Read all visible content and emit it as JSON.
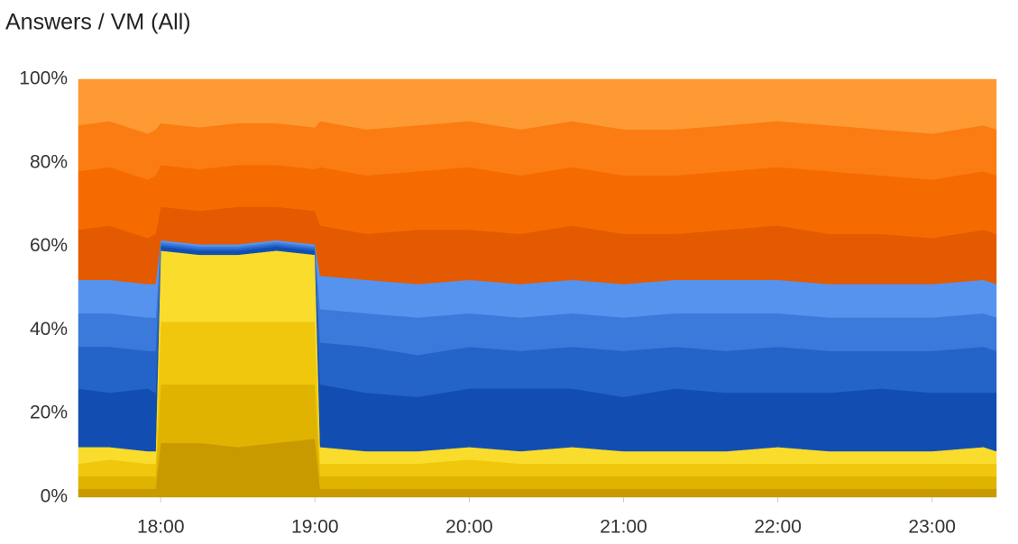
{
  "chart_data": {
    "type": "area",
    "stacked": true,
    "title": "Answers / VM (All)",
    "x": [
      1048,
      1060,
      1075,
      1078,
      1080,
      1095,
      1110,
      1125,
      1140,
      1142,
      1160,
      1180,
      1200,
      1220,
      1240,
      1260,
      1280,
      1300,
      1320,
      1340,
      1360,
      1380,
      1400,
      1405
    ],
    "xlim": [
      1048,
      1405
    ],
    "xticks": [
      {
        "value": 1080,
        "label": "18:00"
      },
      {
        "value": 1140,
        "label": "19:00"
      },
      {
        "value": 1200,
        "label": "20:00"
      },
      {
        "value": 1260,
        "label": "21:00"
      },
      {
        "value": 1320,
        "label": "22:00"
      },
      {
        "value": 1380,
        "label": "23:00"
      }
    ],
    "ylim": [
      0,
      100
    ],
    "yticks": [
      {
        "value": 0,
        "label": "0%"
      },
      {
        "value": 20,
        "label": "20%"
      },
      {
        "value": 40,
        "label": "40%"
      },
      {
        "value": 60,
        "label": "60%"
      },
      {
        "value": 80,
        "label": "80%"
      },
      {
        "value": 100,
        "label": "100%"
      }
    ],
    "series": [
      {
        "color": "#c89a00",
        "values": [
          2,
          2,
          2,
          2,
          13,
          13,
          12,
          13,
          14,
          2,
          2,
          2,
          2,
          2,
          2,
          2,
          2,
          2,
          2,
          2,
          2,
          2,
          2,
          2
        ]
      },
      {
        "color": "#dfb300",
        "values": [
          3,
          3,
          3,
          3,
          14,
          14,
          15,
          14,
          13,
          3,
          3,
          3,
          3,
          3,
          3,
          3,
          3,
          3,
          3,
          3,
          3,
          3,
          3,
          3
        ]
      },
      {
        "color": "#f0c70c",
        "values": [
          3,
          4,
          3,
          3,
          15,
          15,
          15,
          15,
          15,
          3,
          3,
          3,
          4,
          3,
          3,
          3,
          3,
          3,
          3,
          3,
          3,
          3,
          3,
          3
        ]
      },
      {
        "color": "#f9dc2c",
        "values": [
          4,
          3,
          3,
          3,
          17,
          16,
          16,
          17,
          16,
          4,
          3,
          3,
          3,
          3,
          4,
          3,
          3,
          3,
          4,
          3,
          3,
          3,
          4,
          3
        ]
      },
      {
        "color": "#124eb2",
        "values": [
          14,
          13,
          15,
          14,
          1,
          1,
          1,
          1,
          1,
          15,
          14,
          13,
          14,
          15,
          14,
          13,
          15,
          14,
          13,
          14,
          15,
          14,
          13,
          14
        ]
      },
      {
        "color": "#2463c8",
        "values": [
          10,
          11,
          9,
          10,
          0.5,
          0.5,
          0.5,
          0.5,
          0.5,
          10,
          11,
          10,
          10,
          9,
          10,
          11,
          10,
          10,
          11,
          10,
          9,
          10,
          11,
          10
        ]
      },
      {
        "color": "#3b79da",
        "values": [
          8,
          8,
          8,
          8,
          0.5,
          0.5,
          0.5,
          0.5,
          0.5,
          8,
          8,
          9,
          8,
          8,
          8,
          8,
          8,
          9,
          8,
          8,
          8,
          8,
          8,
          8
        ]
      },
      {
        "color": "#5693ee",
        "values": [
          8,
          8,
          8,
          8,
          0.5,
          0.5,
          0.5,
          0.5,
          0.5,
          8,
          8,
          8,
          8,
          8,
          8,
          8,
          8,
          8,
          8,
          8,
          8,
          8,
          8,
          8
        ]
      },
      {
        "color": "#e35a00",
        "values": [
          12,
          13,
          11,
          12,
          8,
          8,
          9,
          8,
          8,
          12,
          11,
          13,
          12,
          12,
          13,
          12,
          11,
          12,
          13,
          12,
          12,
          11,
          12,
          12
        ]
      },
      {
        "color": "#f56b00",
        "values": [
          14,
          14,
          14,
          14,
          10,
          10,
          10,
          10,
          10,
          14,
          14,
          14,
          15,
          14,
          14,
          14,
          14,
          14,
          14,
          15,
          14,
          14,
          14,
          14
        ]
      },
      {
        "color": "#fb7c12",
        "values": [
          11,
          11,
          11,
          11,
          10,
          10,
          10,
          10,
          10,
          11,
          11,
          11,
          11,
          11,
          11,
          11,
          11,
          11,
          11,
          11,
          11,
          11,
          11,
          11
        ]
      },
      {
        "color": "#fd9a33",
        "values": [
          11,
          10,
          13,
          12,
          10.5,
          11.5,
          10.5,
          10.5,
          11.5,
          10,
          12,
          11,
          10,
          12,
          10,
          12,
          12,
          11,
          10,
          11,
          12,
          13,
          11,
          12
        ]
      }
    ]
  }
}
